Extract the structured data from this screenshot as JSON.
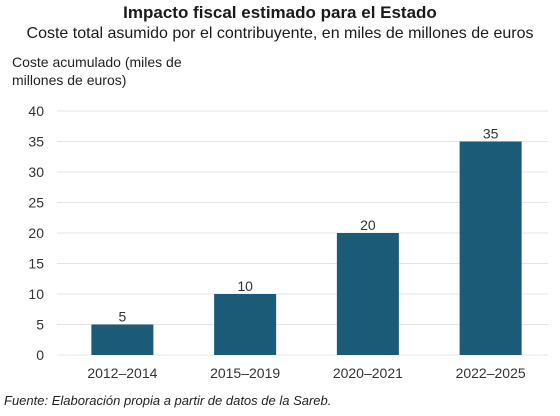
{
  "chart_data": {
    "type": "bar",
    "title": "Impacto fiscal estimado para el Estado",
    "subtitle": "Coste total asumido por el contribuyente, en miles de millones de euros",
    "ylabel": "Coste acumulado (miles de millones de euros)",
    "xlabel": "",
    "categories": [
      "2012–2014",
      "2015–2019",
      "2020–2021",
      "2022–2025"
    ],
    "values": [
      5,
      10,
      20,
      35
    ],
    "ylim": [
      0,
      40
    ],
    "yticks": [
      0,
      5,
      10,
      15,
      20,
      25,
      30,
      35,
      40
    ],
    "grid": true,
    "bar_color": "#1c5b78",
    "source": "Fuente: Elaboración propia a partir de datos de la Sareb."
  }
}
